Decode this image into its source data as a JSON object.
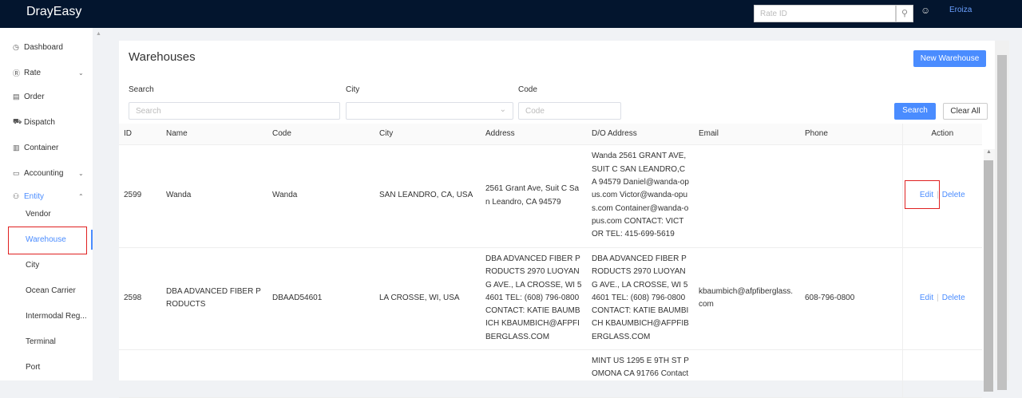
{
  "header": {
    "logo": "DrayEasy",
    "rate_placeholder": "Rate ID",
    "search_icon": "magnifier",
    "chat_icon": "chat-bubble",
    "user": "Eroiza"
  },
  "sidebar": {
    "items": [
      {
        "label": "Dashboard",
        "icon": "◷"
      },
      {
        "label": "Rate",
        "icon": "Ⓡ",
        "chevron": "⌄"
      },
      {
        "label": "Order",
        "icon": "▤"
      },
      {
        "label": "Dispatch",
        "icon": "⛟"
      },
      {
        "label": "Container",
        "icon": "▥"
      },
      {
        "label": "Accounting",
        "icon": "▭",
        "chevron": "⌄"
      },
      {
        "label": "Entity",
        "icon": "⚇",
        "chevron": "⌃"
      }
    ],
    "subitems": [
      "Vendor",
      "Warehouse",
      "City",
      "Ocean Carrier",
      "Intermodal Reg...",
      "Terminal",
      "Port"
    ],
    "active": "Warehouse"
  },
  "page": {
    "title": "Warehouses",
    "new_button": "New Warehouse",
    "filters": {
      "search_label": "Search",
      "search_placeholder": "Search",
      "city_label": "City",
      "code_label": "Code",
      "code_placeholder": "Code",
      "search_button": "Search",
      "clear_button": "Clear All"
    }
  },
  "table": {
    "columns": [
      "ID",
      "Name",
      "Code",
      "City",
      "Address",
      "D/O Address",
      "Email",
      "Phone",
      "Action"
    ],
    "rows": [
      {
        "id": "2599",
        "name": "Wanda",
        "code": "Wanda",
        "city": "SAN LEANDRO, CA, USA",
        "address": "2561 Grant Ave, Suit C San Leandro, CA 94579",
        "do_address": "Wanda 2561 GRANT AVE, SUIT C SAN LEANDRO,CA 94579 Daniel@wanda-opus.com Victor@wanda-opus.com Container@wanda-opus.com CONTACT: VICTOR TEL: 415-699-5619",
        "email": "",
        "phone": "",
        "edit": "Edit",
        "delete": "Delete"
      },
      {
        "id": "2598",
        "name": "DBA ADVANCED FIBER PRODUCTS",
        "code": "DBAAD54601",
        "city": "LA CROSSE, WI, USA",
        "address": "DBA ADVANCED FIBER PRODUCTS 2970 LUOYANG AVE., LA CROSSE, WI 54601 TEL: (608) 796-0800 CONTACT: KATIE BAUMBICH KBAUMBICH@AFPFIBERGLASS.COM",
        "do_address": "DBA ADVANCED FIBER PRODUCTS 2970 LUOYANG AVE., LA CROSSE, WI 54601 TEL: (608) 796-0800 CONTACT: KATIE BAUMBICH KBAUMBICH@AFPFIBERGLASS.COM",
        "email": "kbaumbich@afpfiberglass.com",
        "phone": "608-796-0800",
        "edit": "Edit",
        "delete": "Delete"
      },
      {
        "id": "",
        "name": "",
        "code": "",
        "city": "",
        "address": "",
        "do_address": "MINT US 1295 E 9TH ST POMONA CA 91766 Contact",
        "email": "",
        "phone": "",
        "edit": "",
        "delete": ""
      }
    ]
  }
}
